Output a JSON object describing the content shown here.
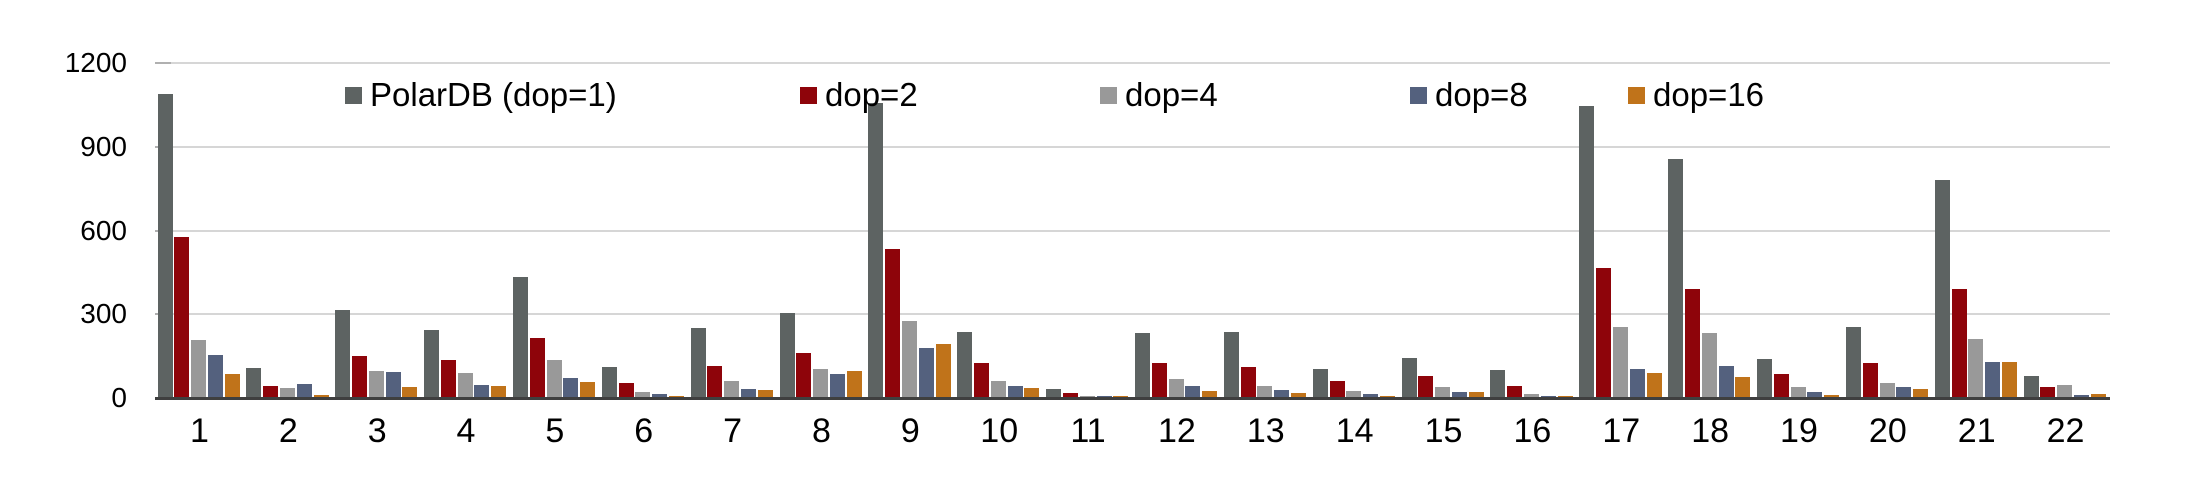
{
  "chart_data": {
    "type": "bar",
    "title": "",
    "xlabel": "",
    "ylabel": "",
    "categories": [
      "1",
      "2",
      "3",
      "4",
      "5",
      "6",
      "7",
      "8",
      "9",
      "10",
      "11",
      "12",
      "13",
      "14",
      "15",
      "16",
      "17",
      "18",
      "19",
      "20",
      "21",
      "22"
    ],
    "series": [
      {
        "name": "PolarDB (dop=1)",
        "color": "#5D6362",
        "values": [
          1090,
          107,
          315,
          245,
          432,
          110,
          250,
          305,
          1055,
          236,
          32,
          232,
          236,
          105,
          142,
          100,
          1045,
          855,
          140,
          255,
          780,
          78
        ]
      },
      {
        "name": "dop=2",
        "color": "#8E040A",
        "values": [
          575,
          42,
          150,
          135,
          215,
          55,
          115,
          160,
          535,
          125,
          18,
          125,
          112,
          62,
          78,
          42,
          465,
          390,
          86,
          125,
          390,
          38
        ]
      },
      {
        "name": "dop=4",
        "color": "#999999",
        "values": [
          207,
          35,
          97,
          90,
          135,
          22,
          62,
          105,
          275,
          62,
          8,
          68,
          44,
          25,
          40,
          16,
          255,
          232,
          40,
          52,
          210,
          48
        ]
      },
      {
        "name": "dop=8",
        "color": "#54617E",
        "values": [
          155,
          50,
          93,
          45,
          72,
          15,
          32,
          86,
          180,
          44,
          5,
          44,
          28,
          15,
          22,
          7,
          105,
          115,
          22,
          40,
          130,
          12
        ]
      },
      {
        "name": "dop=16",
        "color": "#C0731A",
        "values": [
          85,
          12,
          40,
          42,
          58,
          5,
          28,
          98,
          193,
          37,
          5,
          26,
          18,
          8,
          20,
          7,
          90,
          75,
          12,
          32,
          130,
          16
        ]
      }
    ],
    "ylim": [
      0,
      1200
    ],
    "yticks": [
      0,
      300,
      600,
      900,
      1200
    ],
    "grid": true,
    "legend_position": "top-inside",
    "gridline_color": "#d6d6d6",
    "axis_color": "#3f3f3f",
    "background_color": "#ffffff"
  },
  "legend_x_positions": [
    345,
    800,
    1100,
    1410,
    1628
  ]
}
